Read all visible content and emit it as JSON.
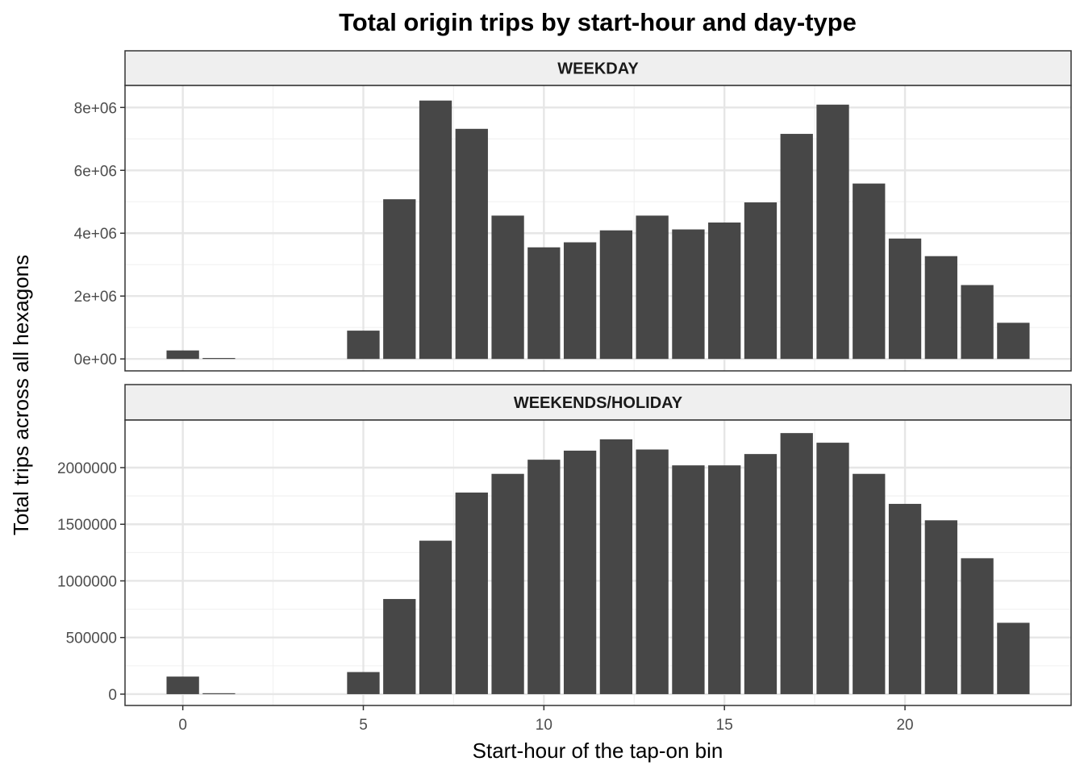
{
  "chart_data": {
    "type": "bar",
    "title": "Total origin trips by start-hour and day-type",
    "xlabel": "Start-hour of the tap-on bin",
    "ylabel": "Total trips across all hexagons",
    "x": [
      0,
      1,
      2,
      3,
      4,
      5,
      6,
      7,
      8,
      9,
      10,
      11,
      12,
      13,
      14,
      15,
      16,
      17,
      18,
      19,
      20,
      21,
      22,
      23
    ],
    "xlim": [
      -1.6,
      24.6
    ],
    "x_ticks": [
      0,
      5,
      10,
      15,
      20
    ],
    "x_tick_labels": [
      "0",
      "5",
      "10",
      "15",
      "20"
    ],
    "grid": true,
    "bar_color": "#474747",
    "panels": [
      {
        "name": "WEEKDAY",
        "ylim": [
          -380000,
          8700000
        ],
        "y_ticks": [
          0,
          2000000,
          4000000,
          6000000,
          8000000
        ],
        "y_tick_labels": [
          "0e+00",
          "2e+06",
          "4e+06",
          "6e+06",
          "8e+06"
        ],
        "values": [
          270000,
          30000,
          0,
          0,
          0,
          900000,
          5080000,
          8220000,
          7320000,
          4560000,
          3550000,
          3710000,
          4090000,
          4560000,
          4120000,
          4340000,
          4980000,
          7160000,
          8090000,
          5580000,
          3830000,
          3270000,
          2350000,
          1150000
        ]
      },
      {
        "name": "WEEKENDS/HOLIDAY",
        "ylim": [
          -100000,
          2420000
        ],
        "y_ticks": [
          0,
          500000,
          1000000,
          1500000,
          2000000
        ],
        "y_tick_labels": [
          "0",
          "500000",
          "1000000",
          "1500000",
          "2000000"
        ],
        "values": [
          155000,
          8000,
          0,
          0,
          0,
          195000,
          840000,
          1355000,
          1780000,
          1945000,
          2070000,
          2150000,
          2250000,
          2160000,
          2020000,
          2020000,
          2120000,
          2305000,
          2220000,
          1945000,
          1680000,
          1535000,
          1200000,
          630000
        ]
      }
    ]
  }
}
